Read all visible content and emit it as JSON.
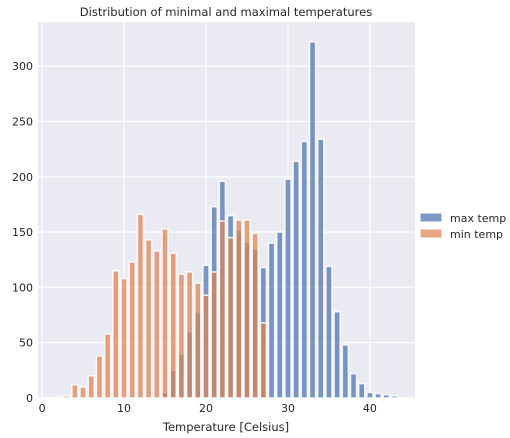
{
  "chart_data": {
    "type": "bar",
    "title": "Distribution of minimal and maximal temperatures",
    "xlabel": "Temperature [Celsius]",
    "ylabel": "",
    "xlim": [
      -0.5,
      45.5
    ],
    "ylim": [
      0,
      340
    ],
    "xticks": [
      0,
      10,
      20,
      30,
      40
    ],
    "yticks": [
      0,
      50,
      100,
      150,
      200,
      250,
      300
    ],
    "grid": true,
    "legend_position": "right",
    "bar_width": 0.75,
    "series": [
      {
        "name": "max temp",
        "color": "#4c72b0",
        "x": [
          15,
          16,
          17,
          18,
          19,
          20,
          21,
          22,
          23,
          24,
          25,
          26,
          27,
          28,
          29,
          30,
          31,
          32,
          33,
          34,
          35,
          36,
          37,
          38,
          39,
          40,
          41,
          42,
          43
        ],
        "values": [
          5,
          25,
          40,
          60,
          78,
          120,
          173,
          196,
          165,
          152,
          141,
          135,
          118,
          140,
          150,
          198,
          214,
          232,
          322,
          234,
          119,
          78,
          48,
          22,
          13,
          5,
          4,
          3,
          2
        ]
      },
      {
        "name": "min temp",
        "color": "#dd8452",
        "x": [
          2,
          3,
          4,
          5,
          6,
          7,
          8,
          9,
          10,
          11,
          12,
          13,
          14,
          15,
          16,
          17,
          18,
          19,
          20,
          21,
          22,
          23,
          24,
          25,
          26,
          27
        ],
        "values": [
          1,
          2,
          12,
          10,
          20,
          38,
          58,
          115,
          108,
          123,
          166,
          143,
          133,
          153,
          131,
          112,
          114,
          104,
          93,
          114,
          160,
          145,
          161,
          161,
          149,
          68
        ]
      }
    ]
  }
}
